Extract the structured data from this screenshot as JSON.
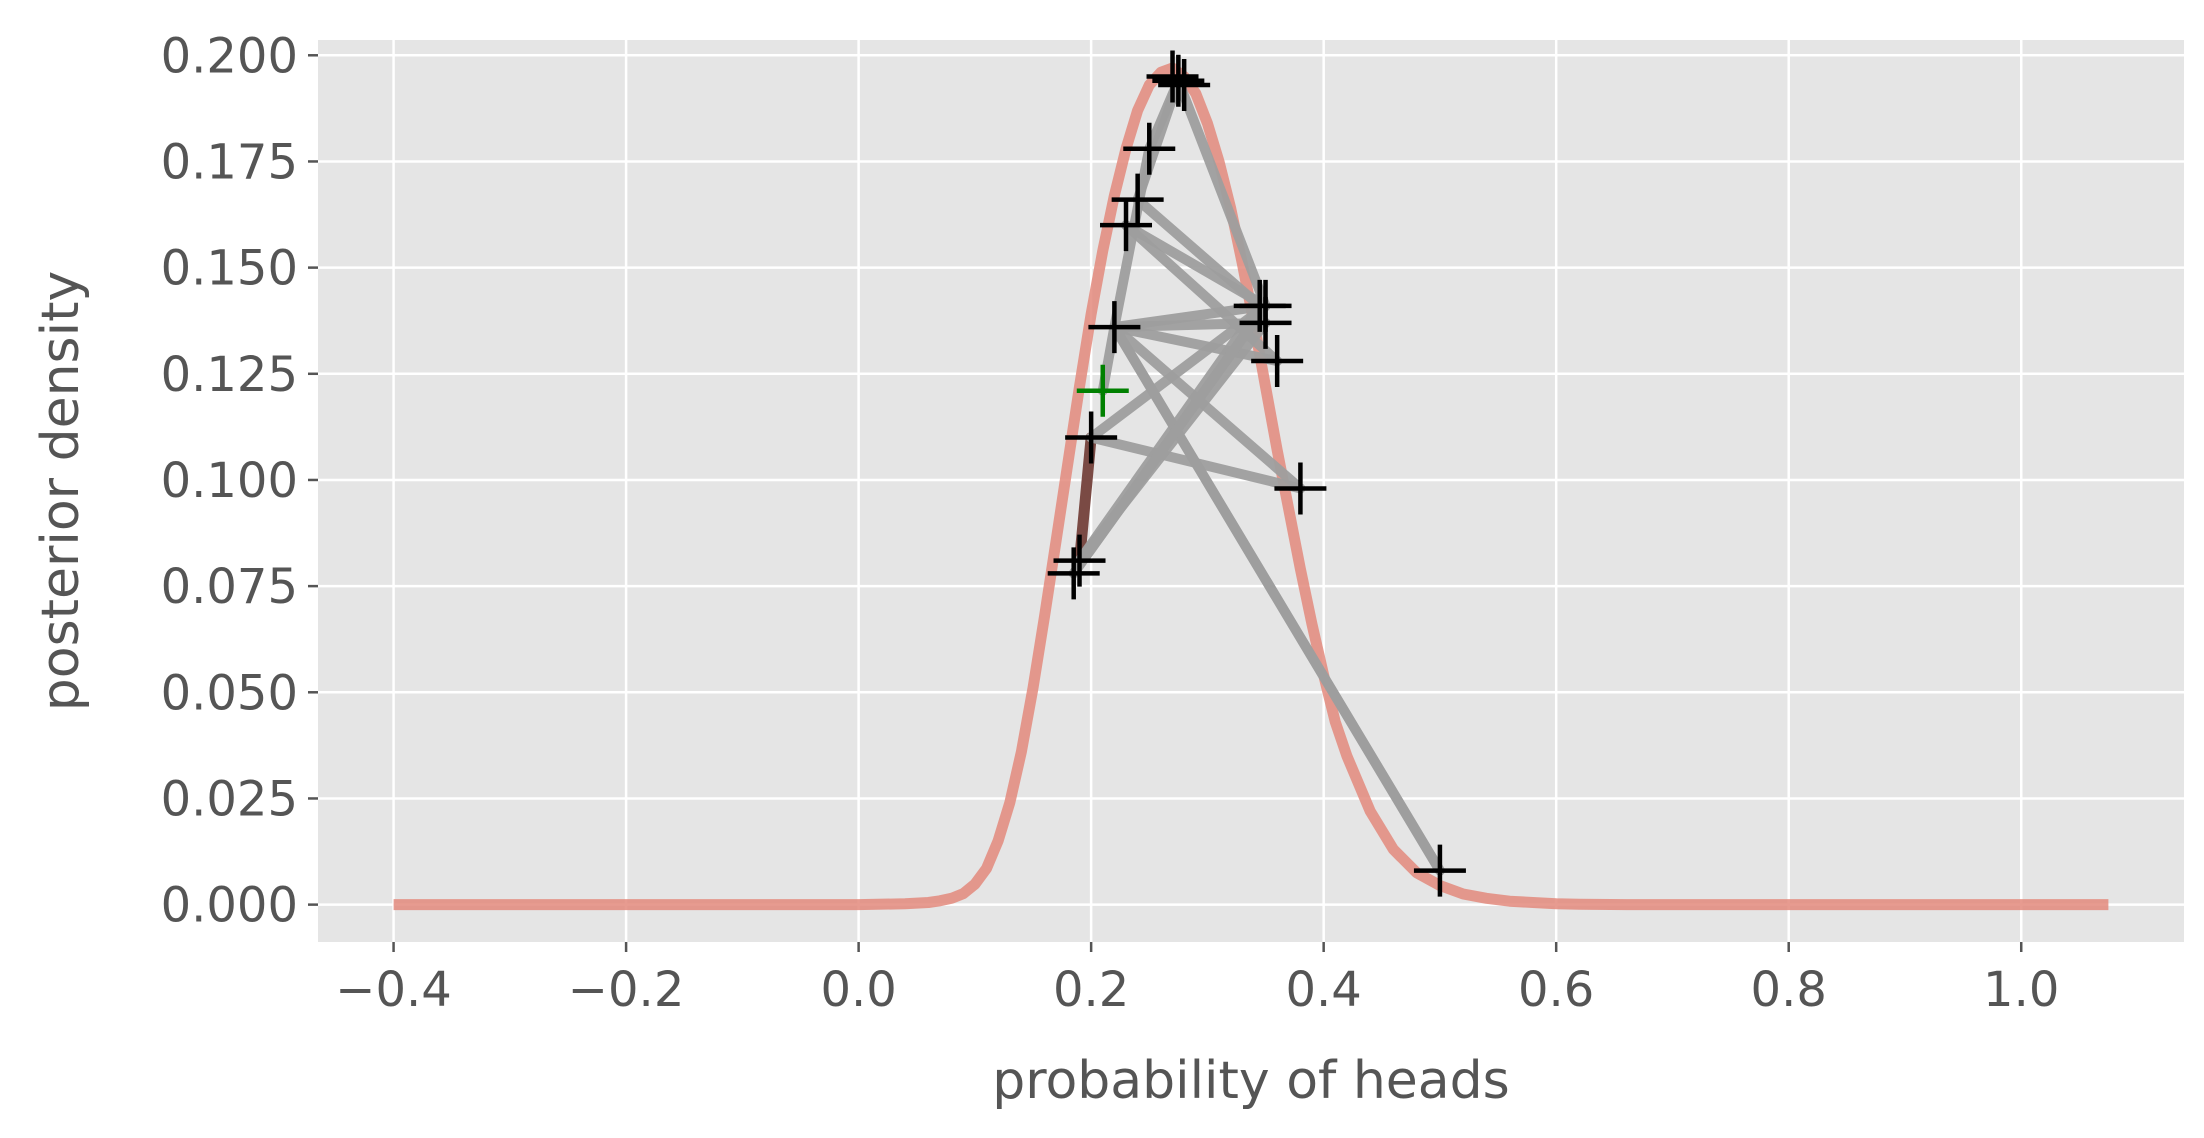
{
  "chart_data": {
    "type": "line",
    "title": "",
    "xlabel": "probability of heads",
    "ylabel": "posterior density",
    "xlim": [
      -0.465,
      1.14
    ],
    "ylim": [
      -0.0088,
      0.2036
    ],
    "xticks": [
      -0.4,
      -0.2,
      0.0,
      0.2,
      0.4,
      0.6,
      0.8,
      1.0
    ],
    "xtick_labels": [
      "−0.4",
      "−0.2",
      "0.0",
      "0.2",
      "0.4",
      "0.6",
      "0.8",
      "1.0"
    ],
    "yticks": [
      0.0,
      0.025,
      0.05,
      0.075,
      0.1,
      0.125,
      0.15,
      0.175,
      0.2
    ],
    "ytick_labels": [
      "0.000",
      "0.025",
      "0.050",
      "0.075",
      "0.100",
      "0.125",
      "0.150",
      "0.175",
      "0.200"
    ],
    "grid": true,
    "style": "ggplot",
    "colors": {
      "background": "#e5e5e5",
      "grid": "#ffffff",
      "curve": "#e38a7c",
      "path": "#9e9e9e",
      "marker": "#000000",
      "start_marker": "#008000",
      "dark_segment": "#7a4a44"
    },
    "series": [
      {
        "type": "line",
        "x": [
          -0.4,
          -0.2,
          0.0,
          0.04,
          0.06,
          0.07,
          0.08,
          0.09,
          0.1,
          0.11,
          0.12,
          0.13,
          0.14,
          0.15,
          0.16,
          0.17,
          0.18,
          0.19,
          0.2,
          0.21,
          0.22,
          0.23,
          0.24,
          0.25,
          0.26,
          0.27,
          0.28,
          0.29,
          0.3,
          0.31,
          0.32,
          0.33,
          0.34,
          0.35,
          0.36,
          0.37,
          0.38,
          0.39,
          0.4,
          0.41,
          0.42,
          0.44,
          0.46,
          0.48,
          0.5,
          0.52,
          0.54,
          0.56,
          0.58,
          0.6,
          0.62,
          0.66,
          0.8,
          1.075
        ],
        "y": [
          0.0,
          0.0,
          0.0,
          0.0002,
          0.0005,
          0.0009,
          0.0015,
          0.0026,
          0.0048,
          0.0085,
          0.015,
          0.024,
          0.036,
          0.051,
          0.068,
          0.086,
          0.104,
          0.122,
          0.139,
          0.154,
          0.167,
          0.178,
          0.187,
          0.193,
          0.196,
          0.197,
          0.195,
          0.191,
          0.184,
          0.175,
          0.164,
          0.151,
          0.137,
          0.122,
          0.107,
          0.093,
          0.079,
          0.066,
          0.054,
          0.043,
          0.035,
          0.022,
          0.013,
          0.0075,
          0.0045,
          0.0025,
          0.0015,
          0.0008,
          0.0005,
          0.0002,
          0.0001,
          0.0,
          0.0,
          0.0
        ]
      },
      {
        "type": "sampler-path",
        "points": [
          [
            0.21,
            0.121
          ],
          [
            0.22,
            0.136
          ],
          [
            0.35,
            0.137
          ],
          [
            0.19,
            0.081
          ],
          [
            0.345,
            0.141
          ],
          [
            0.24,
            0.166
          ],
          [
            0.275,
            0.194
          ],
          [
            0.35,
            0.141
          ],
          [
            0.2,
            0.11
          ],
          [
            0.38,
            0.098
          ],
          [
            0.22,
            0.136
          ],
          [
            0.5,
            0.008
          ],
          [
            0.22,
            0.136
          ],
          [
            0.36,
            0.128
          ],
          [
            0.23,
            0.16
          ],
          [
            0.35,
            0.141
          ],
          [
            0.185,
            0.078
          ],
          [
            0.35,
            0.141
          ],
          [
            0.22,
            0.136
          ],
          [
            0.25,
            0.178
          ],
          [
            0.275,
            0.194
          ]
        ]
      },
      {
        "type": "scatter",
        "marker": "+",
        "points": [
          [
            0.21,
            0.121
          ],
          [
            0.22,
            0.136
          ],
          [
            0.35,
            0.137
          ],
          [
            0.19,
            0.081
          ],
          [
            0.345,
            0.141
          ],
          [
            0.24,
            0.166
          ],
          [
            0.275,
            0.194
          ],
          [
            0.35,
            0.141
          ],
          [
            0.2,
            0.11
          ],
          [
            0.38,
            0.098
          ],
          [
            0.5,
            0.008
          ],
          [
            0.36,
            0.128
          ],
          [
            0.23,
            0.16
          ],
          [
            0.185,
            0.078
          ],
          [
            0.25,
            0.178
          ],
          [
            0.28,
            0.193
          ],
          [
            0.27,
            0.195
          ]
        ]
      }
    ]
  }
}
